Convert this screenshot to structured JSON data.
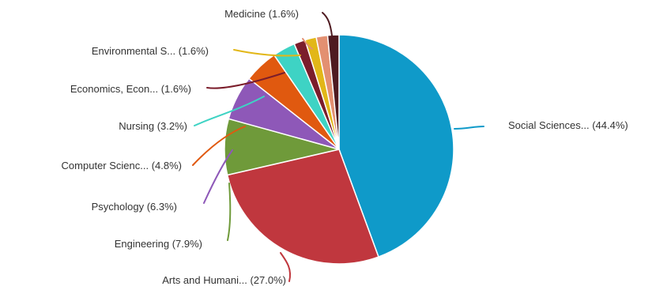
{
  "chart_data": {
    "type": "pie",
    "title": "",
    "slices": [
      {
        "label": "Social Sciences... (44.4%)",
        "value": 44.4,
        "color": "#0f9ac9"
      },
      {
        "label": "Arts and Humani... (27.0%)",
        "value": 27.0,
        "color": "#c0373e"
      },
      {
        "label": "Engineering (7.9%)",
        "value": 7.9,
        "color": "#6f9a3a"
      },
      {
        "label": "Psychology (6.3%)",
        "value": 6.3,
        "color": "#8e58b8"
      },
      {
        "label": "Computer Scienc... (4.8%)",
        "value": 4.8,
        "color": "#e0590f"
      },
      {
        "label": "Nursing (3.2%)",
        "value": 3.2,
        "color": "#3ed3c4"
      },
      {
        "label": "Economics, Econ... (1.6%)",
        "value": 1.6,
        "color": "#7b1d2b"
      },
      {
        "label": "Environmental S... (1.6%)",
        "value": 1.6,
        "color": "#e2b718"
      },
      {
        "label": "",
        "value": 1.6,
        "color": "#e39071"
      },
      {
        "label": "Medicine (1.6%)",
        "value": 1.6,
        "color": "#4e1a20"
      }
    ]
  }
}
